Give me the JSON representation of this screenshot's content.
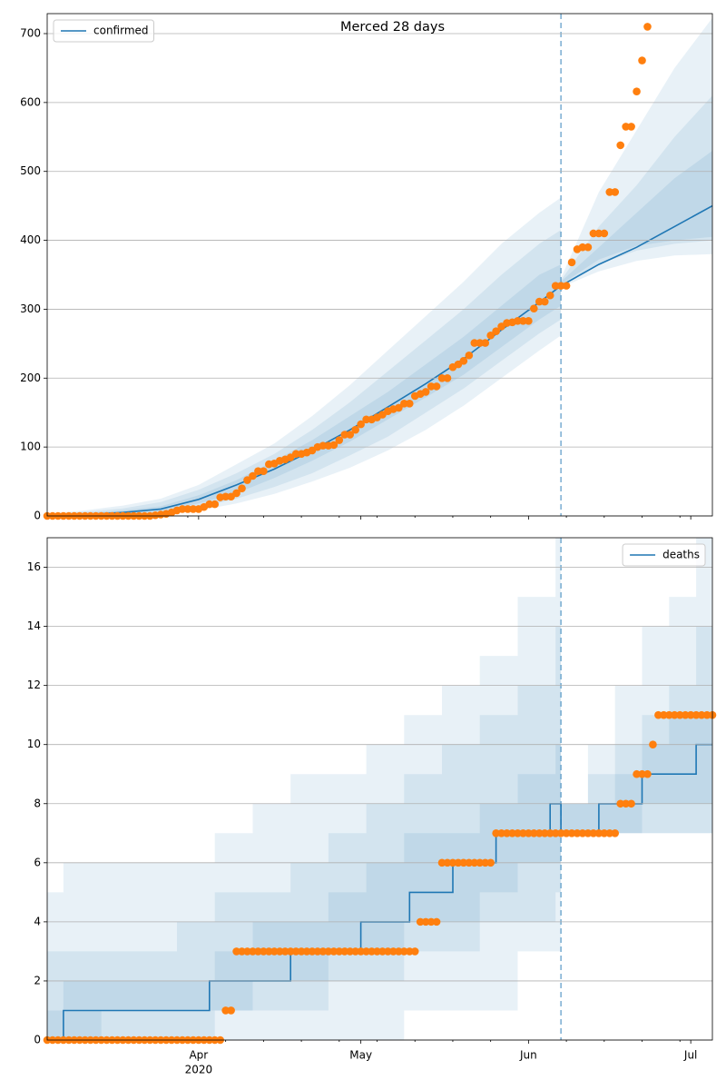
{
  "chart_data": [
    {
      "type": "line",
      "title": "Merced 28 days",
      "legend": "upper left",
      "grid": true,
      "xlim": [
        0,
        123
      ],
      "ylim": [
        0,
        729
      ],
      "yticks": [
        0,
        100,
        200,
        300,
        400,
        500,
        600,
        700
      ],
      "forecast_start": 95,
      "series": [
        {
          "name": "confirmed",
          "color": "#1f77b4",
          "x": [
            0,
            7,
            14,
            21,
            28,
            35,
            42,
            49,
            56,
            63,
            70,
            77,
            84,
            91,
            95,
            102,
            109,
            116,
            123
          ],
          "values": [
            0,
            2,
            5,
            10,
            24,
            45,
            68,
            95,
            125,
            158,
            192,
            228,
            270,
            310,
            334,
            365,
            390,
            420,
            450
          ]
        }
      ],
      "observed": {
        "color": "#ff7f0e",
        "x": [
          0,
          1,
          2,
          3,
          4,
          5,
          6,
          7,
          8,
          9,
          10,
          11,
          12,
          13,
          14,
          15,
          16,
          17,
          18,
          19,
          20,
          21,
          22,
          23,
          24,
          25,
          26,
          27,
          28,
          29,
          30,
          31,
          32,
          33,
          34,
          35,
          36,
          37,
          38,
          39,
          40,
          41,
          42,
          43,
          44,
          45,
          46,
          47,
          48,
          49,
          50,
          51,
          52,
          53,
          54,
          55,
          56,
          57,
          58,
          59,
          60,
          61,
          62,
          63,
          64,
          65,
          66,
          67,
          68,
          69,
          70,
          71,
          72,
          73,
          74,
          75,
          76,
          77,
          78,
          79,
          80,
          81,
          82,
          83,
          84,
          85,
          86,
          87,
          88,
          89,
          90,
          91,
          92,
          93,
          94,
          95,
          96,
          97,
          98,
          99,
          100,
          101,
          102,
          103,
          104,
          105,
          106,
          107,
          108,
          109,
          110,
          111
        ],
        "values": [
          0,
          0,
          0,
          0,
          0,
          0,
          0,
          0,
          0,
          0,
          0,
          0,
          0,
          0,
          0,
          0,
          0,
          0,
          0,
          0,
          1,
          2,
          3,
          5,
          8,
          10,
          10,
          10,
          10,
          13,
          17,
          17,
          27,
          28,
          28,
          33,
          40,
          52,
          58,
          65,
          65,
          75,
          76,
          80,
          82,
          85,
          90,
          90,
          92,
          95,
          100,
          102,
          102,
          103,
          110,
          118,
          118,
          125,
          133,
          140,
          140,
          143,
          147,
          152,
          155,
          157,
          163,
          163,
          174,
          177,
          180,
          188,
          188,
          200,
          200,
          216,
          220,
          225,
          233,
          251,
          251,
          251,
          262,
          268,
          275,
          280,
          281,
          283,
          283,
          283,
          301,
          311,
          311,
          320,
          334,
          334,
          334,
          368,
          387,
          390,
          390,
          410,
          410,
          410,
          470,
          470,
          538,
          565,
          565,
          616,
          661,
          710
        ]
      },
      "bands": {
        "color": "#1f77b4",
        "x": [
          0,
          7,
          14,
          21,
          28,
          35,
          42,
          49,
          56,
          63,
          70,
          77,
          84,
          91,
          95,
          null,
          95,
          102,
          109,
          116,
          123
        ],
        "ranges": [
          {
            "lower": [
              0,
              0,
              1,
              3,
              8,
              18,
              32,
              50,
              70,
              95,
              125,
              160,
              200,
              240,
              262,
              null,
              332,
              355,
              370,
              378,
              380
            ],
            "upper": [
              3,
              8,
              15,
              25,
              45,
              75,
              105,
              145,
              190,
              240,
              290,
              340,
              395,
              440,
              462,
              null,
              345,
              470,
              560,
              650,
              723
            ]
          },
          {
            "lower": [
              0,
              0,
              2,
              5,
              12,
              25,
              42,
              62,
              88,
              115,
              150,
              185,
              225,
              265,
              285,
              null,
              334,
              365,
              385,
              395,
              400
            ],
            "upper": [
              2,
              6,
              11,
              20,
              38,
              62,
              90,
              125,
              165,
              210,
              255,
              300,
              350,
              395,
              415,
              null,
              342,
              420,
              480,
              550,
              610
            ]
          },
          {
            "lower": [
              0,
              1,
              3,
              7,
              18,
              33,
              55,
              80,
              108,
              140,
              172,
              205,
              245,
              285,
              305,
              null,
              336,
              372,
              392,
              400,
              405
            ],
            "upper": [
              1,
              4,
              8,
              14,
              30,
              52,
              80,
              110,
              145,
              180,
              220,
              260,
              305,
              350,
              365,
              null,
              340,
              390,
              440,
              490,
              530
            ]
          }
        ]
      }
    },
    {
      "type": "line",
      "legend": "upper right",
      "grid": true,
      "step": "post",
      "xlim": [
        0,
        123
      ],
      "ylim": [
        0,
        17
      ],
      "yticks": [
        0,
        2,
        4,
        6,
        8,
        10,
        12,
        14,
        16
      ],
      "xticks": [
        {
          "value": 28,
          "label": "Apr",
          "sublabel": "2020"
        },
        {
          "value": 58,
          "label": "May"
        },
        {
          "value": 89,
          "label": "Jun"
        },
        {
          "value": 119,
          "label": "Jul"
        }
      ],
      "xminorticks": [
        5,
        12,
        19,
        26,
        33,
        40,
        47,
        54,
        61,
        68,
        75,
        82,
        96,
        103,
        110,
        117
      ],
      "forecast_start": 95,
      "series": [
        {
          "name": "deaths",
          "color": "#1f77b4",
          "x": [
            0,
            3,
            30,
            45,
            58,
            67,
            75,
            83,
            93,
            95,
            102,
            110,
            120,
            123
          ],
          "values": [
            0,
            1,
            2,
            3,
            4,
            5,
            6,
            7,
            8,
            7,
            8,
            9,
            10,
            10
          ]
        }
      ],
      "observed": {
        "color": "#ff7f0e",
        "x": [
          0,
          1,
          2,
          3,
          4,
          5,
          6,
          7,
          8,
          9,
          10,
          11,
          12,
          13,
          14,
          15,
          16,
          17,
          18,
          19,
          20,
          21,
          22,
          23,
          24,
          25,
          26,
          27,
          28,
          29,
          30,
          31,
          32,
          33,
          34,
          35,
          36,
          37,
          38,
          39,
          40,
          41,
          42,
          43,
          44,
          45,
          46,
          47,
          48,
          49,
          50,
          51,
          52,
          53,
          54,
          55,
          56,
          57,
          58,
          59,
          60,
          61,
          62,
          63,
          64,
          65,
          66,
          67,
          68,
          69,
          70,
          71,
          72,
          73,
          74,
          75,
          76,
          77,
          78,
          79,
          80,
          81,
          82,
          83,
          84,
          85,
          86,
          87,
          88,
          89,
          90,
          91,
          92,
          93,
          94,
          95,
          96,
          97,
          98,
          99,
          100,
          101,
          102,
          103,
          104,
          105,
          106,
          107,
          108,
          109,
          110,
          111,
          112,
          113,
          114,
          115,
          116,
          117,
          118,
          119,
          120,
          121,
          122,
          123
        ],
        "values": [
          0,
          0,
          0,
          0,
          0,
          0,
          0,
          0,
          0,
          0,
          0,
          0,
          0,
          0,
          0,
          0,
          0,
          0,
          0,
          0,
          0,
          0,
          0,
          0,
          0,
          0,
          0,
          0,
          0,
          0,
          0,
          0,
          0,
          1,
          1,
          3,
          3,
          3,
          3,
          3,
          3,
          3,
          3,
          3,
          3,
          3,
          3,
          3,
          3,
          3,
          3,
          3,
          3,
          3,
          3,
          3,
          3,
          3,
          3,
          3,
          3,
          3,
          3,
          3,
          3,
          3,
          3,
          3,
          3,
          4,
          4,
          4,
          4,
          6,
          6,
          6,
          6,
          6,
          6,
          6,
          6,
          6,
          6,
          7,
          7,
          7,
          7,
          7,
          7,
          7,
          7,
          7,
          7,
          7,
          7,
          7,
          7,
          7,
          7,
          7,
          7,
          7,
          7,
          7,
          7,
          7,
          8,
          8,
          8,
          9,
          9,
          9,
          10,
          11,
          11,
          11,
          11,
          11,
          11,
          11,
          11,
          11,
          11,
          11
        ]
      },
      "bands": {
        "color": "#1f77b4",
        "x": [
          0,
          3,
          10,
          17,
          24,
          31,
          38,
          45,
          52,
          59,
          66,
          73,
          80,
          87,
          94,
          95,
          null,
          95,
          100,
          105,
          110,
          115,
          120,
          123
        ],
        "ranges": [
          {
            "lower": [
              0,
              0,
              0,
              0,
              0,
              0,
              0,
              0,
              0,
              0,
              1,
              1,
              1,
              3,
              3,
              3,
              null,
              7,
              7,
              7,
              7,
              7,
              7,
              7
            ],
            "upper": [
              5,
              6,
              6,
              6,
              6,
              7,
              8,
              9,
              9,
              10,
              11,
              12,
              13,
              15,
              17,
              17,
              null,
              8,
              10,
              12,
              14,
              15,
              17,
              17
            ]
          },
          {
            "lower": [
              0,
              0,
              0,
              0,
              0,
              1,
              1,
              1,
              2,
              2,
              3,
              3,
              4,
              4,
              5,
              5,
              null,
              7,
              7,
              7,
              7,
              7,
              7,
              7
            ],
            "upper": [
              3,
              3,
              3,
              3,
              4,
              5,
              5,
              6,
              7,
              8,
              9,
              10,
              11,
              12,
              14,
              14,
              null,
              8,
              9,
              10,
              11,
              12,
              14,
              14
            ]
          },
          {
            "lower": [
              0,
              0,
              1,
              1,
              1,
              1,
              2,
              2,
              3,
              3,
              4,
              4,
              5,
              6,
              6,
              6,
              null,
              7,
              7,
              7,
              8,
              8,
              8,
              8
            ],
            "upper": [
              1,
              2,
              2,
              2,
              2,
              3,
              4,
              4,
              5,
              6,
              7,
              7,
              8,
              9,
              10,
              10,
              null,
              8,
              8,
              9,
              10,
              11,
              11,
              12
            ]
          }
        ]
      }
    }
  ]
}
